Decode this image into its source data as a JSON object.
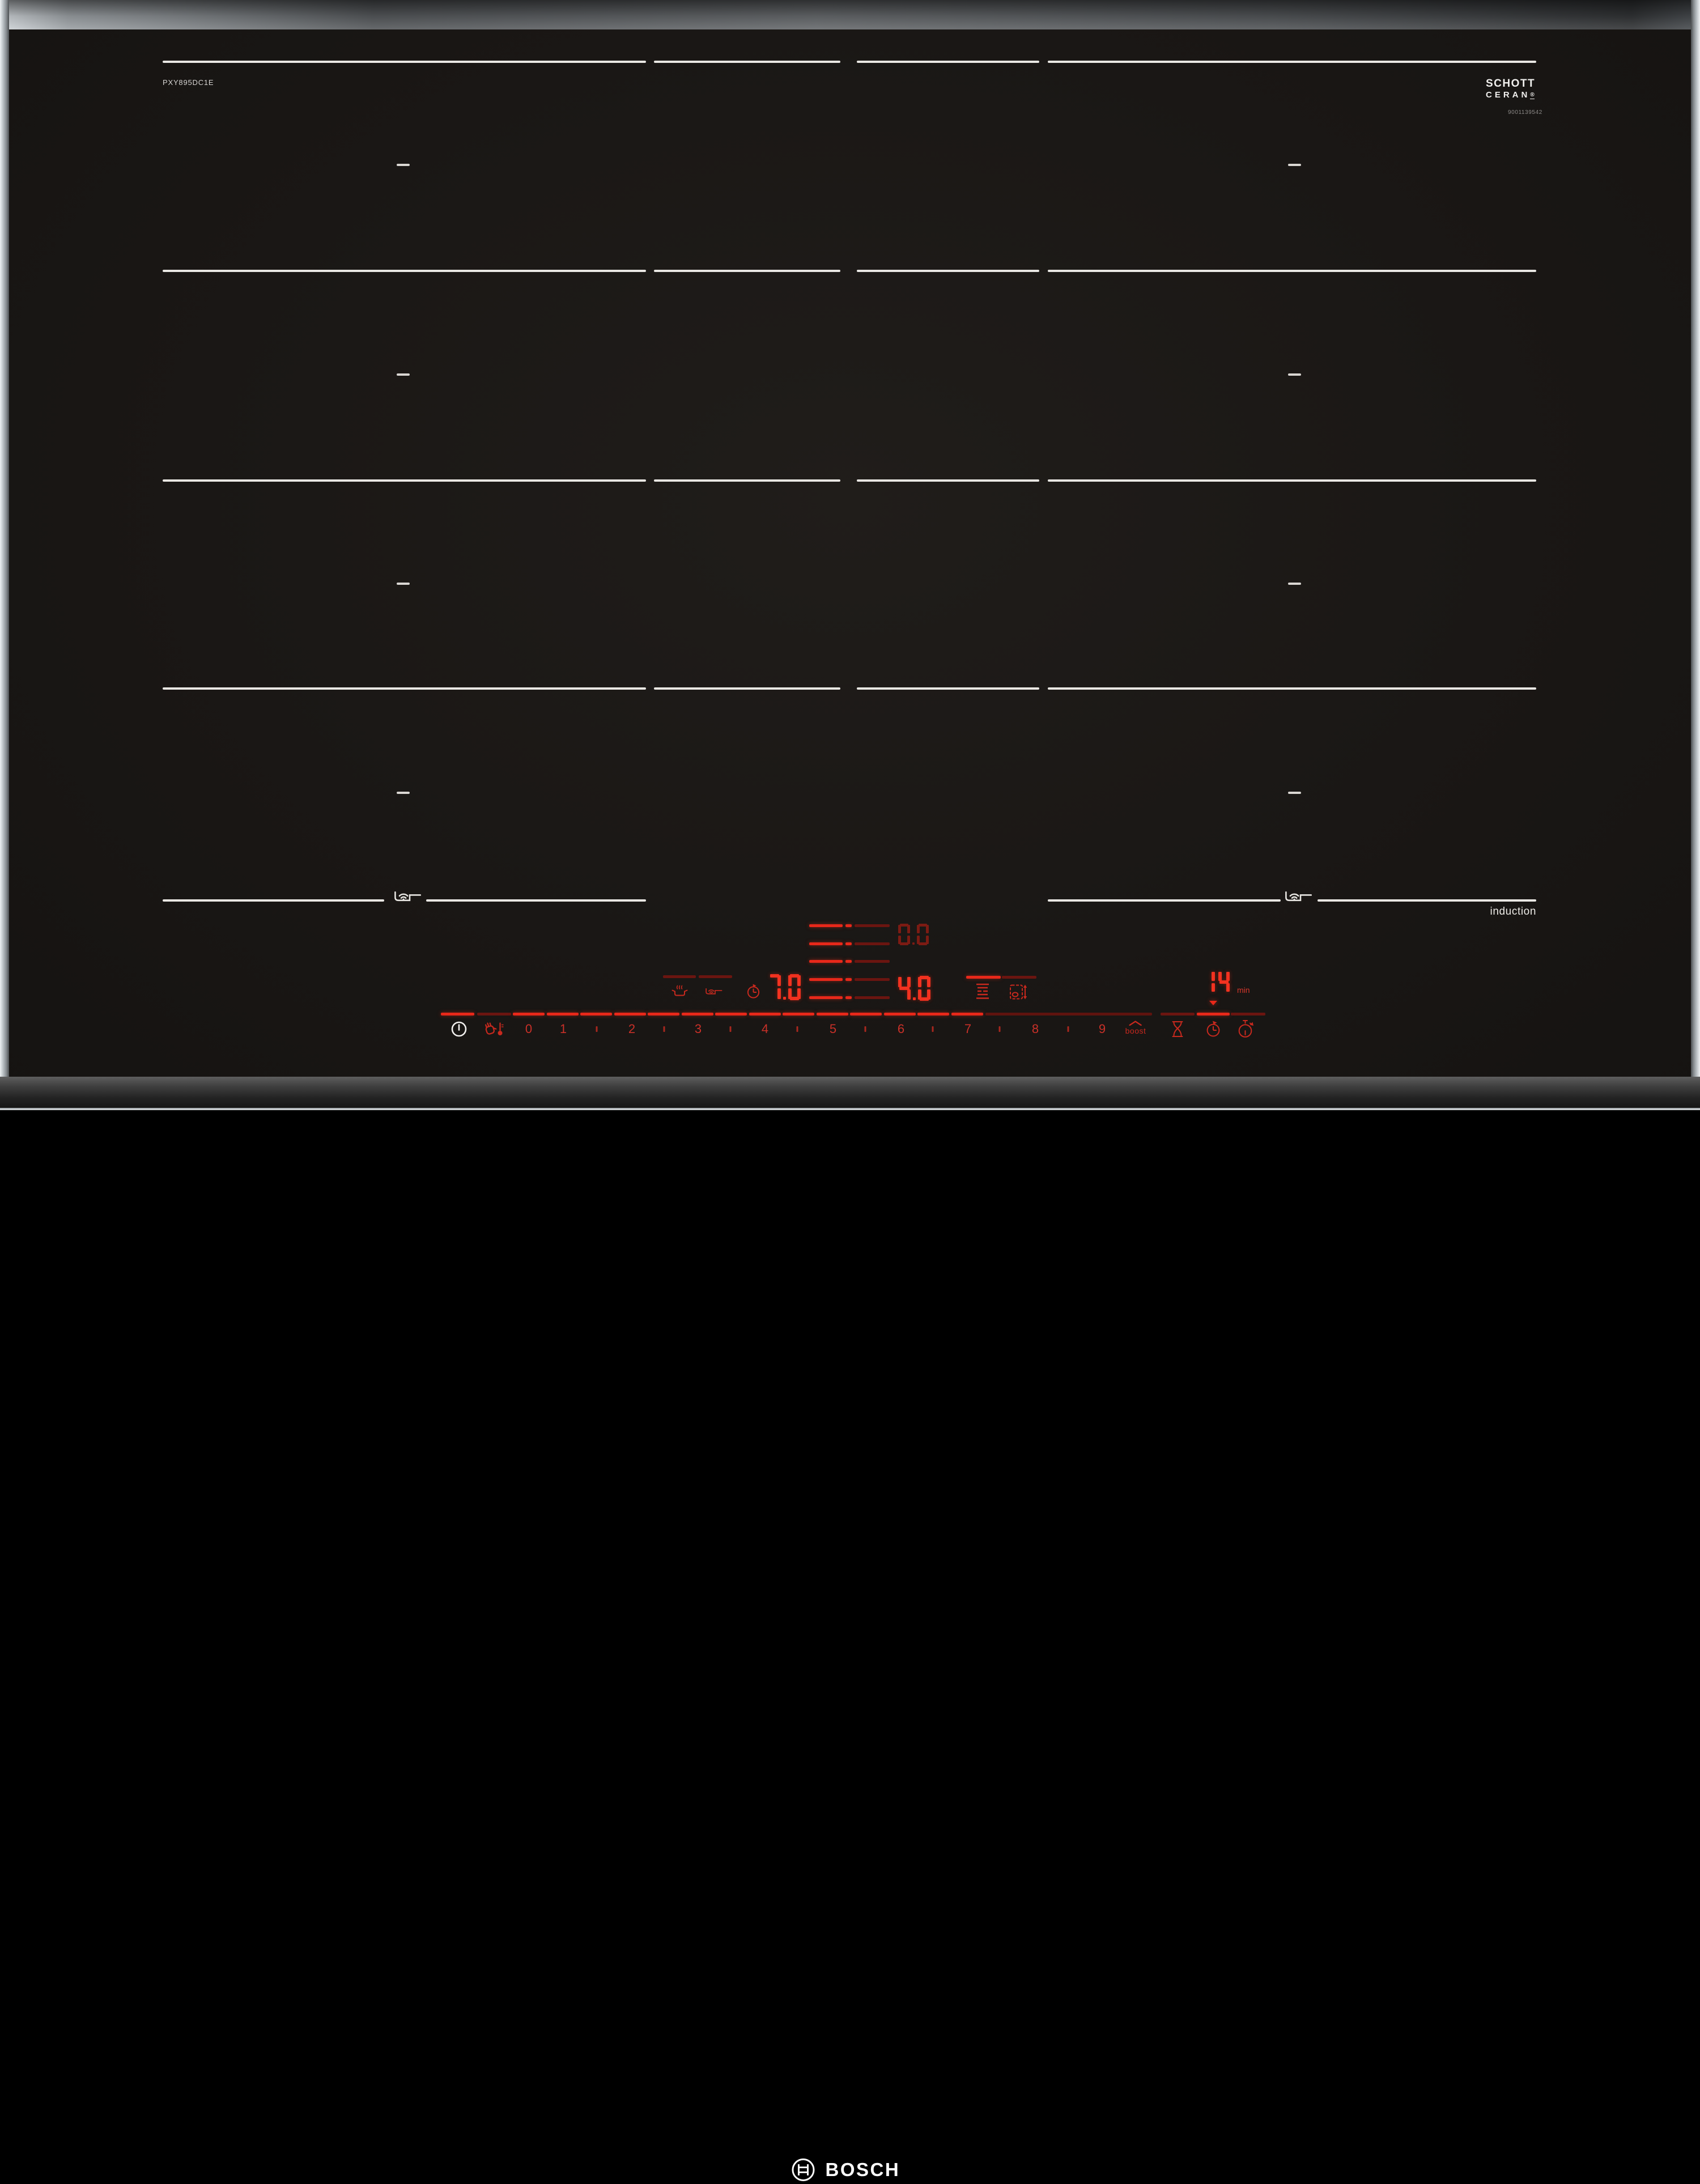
{
  "branding": {
    "model_number": "PXY895DC1E",
    "glass_brand_line1": "SCHOTT",
    "glass_brand_line2": "CERAN",
    "glass_brand_reg": "®",
    "glass_serial": "9001139542",
    "induction_label": "induction",
    "logo_text": "BOSCH"
  },
  "displays": {
    "front_left_level": "7.0",
    "rear_left_level": "0.0",
    "front_right_level": "4.0",
    "timer_value": "14",
    "timer_unit": "min"
  },
  "power_slider": {
    "labels": [
      "0",
      "1",
      "2",
      "3",
      "4",
      "5",
      "6",
      "7",
      "8",
      "9"
    ],
    "boost_label": "boost",
    "active_level": "7"
  },
  "level_indicator": {
    "row_count": 5
  },
  "icons": {
    "power": "power-standby-circle",
    "child_lock": "hand-with-thermometer",
    "keep_warm": "pot-with-steam",
    "frying_sensor": "pan-with-sensor-waves",
    "zone_timer": "clock-with-arrow",
    "menu_levels": "five-lines",
    "pan_transfer": "pan-in-frame-with-arrows",
    "timer_hourglass": "hourglass",
    "timer_clock": "clock-with-arrow",
    "timer_stopwatch": "stopwatch",
    "flex_zone_marker": "pan-with-sensor-waves",
    "bosch_emblem": "circle-armature"
  },
  "colors": {
    "led_bright": "#e8281a",
    "led_mid": "#c3291f",
    "led_dim": "#6b1510",
    "zone_line": "#e9e7e3",
    "glass": "#191613"
  }
}
